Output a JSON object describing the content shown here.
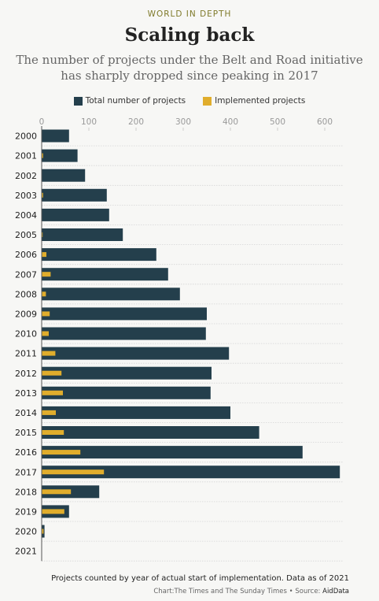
{
  "header": {
    "kicker": "WORLD IN DEPTH",
    "title": "Scaling back",
    "subtitle": "The number of projects under the Belt and Road initiative has sharply dropped since peaking in 2017"
  },
  "chart_data": {
    "type": "bar",
    "orientation": "horizontal",
    "categories": [
      "2000",
      "2001",
      "2002",
      "2003",
      "2004",
      "2005",
      "2006",
      "2007",
      "2008",
      "2009",
      "2010",
      "2011",
      "2012",
      "2013",
      "2014",
      "2015",
      "2016",
      "2017",
      "2018",
      "2019",
      "2020",
      "2021"
    ],
    "series": [
      {
        "name": "Total number of projects",
        "color": "#243f4c",
        "values": [
          58,
          76,
          92,
          138,
          143,
          172,
          243,
          268,
          293,
          350,
          348,
          397,
          360,
          358,
          400,
          461,
          553,
          632,
          122,
          58,
          6,
          0
        ]
      },
      {
        "name": "Implemented projects",
        "color": "#e0ad2c",
        "values": [
          0,
          3,
          0,
          3,
          0,
          2,
          10,
          19,
          9,
          17,
          15,
          29,
          42,
          45,
          30,
          47,
          82,
          132,
          62,
          48,
          4,
          0
        ]
      }
    ],
    "xlim": [
      0,
      640
    ],
    "xticks": [
      0,
      100,
      200,
      300,
      400,
      500,
      600
    ],
    "grid": true,
    "legend_position": "top"
  },
  "footer": {
    "note": "Projects counted by year of actual start of implementation. Data as of 2021",
    "credit": "Chart:The Times and The Sunday Times • Source: ",
    "source": "AidData"
  }
}
